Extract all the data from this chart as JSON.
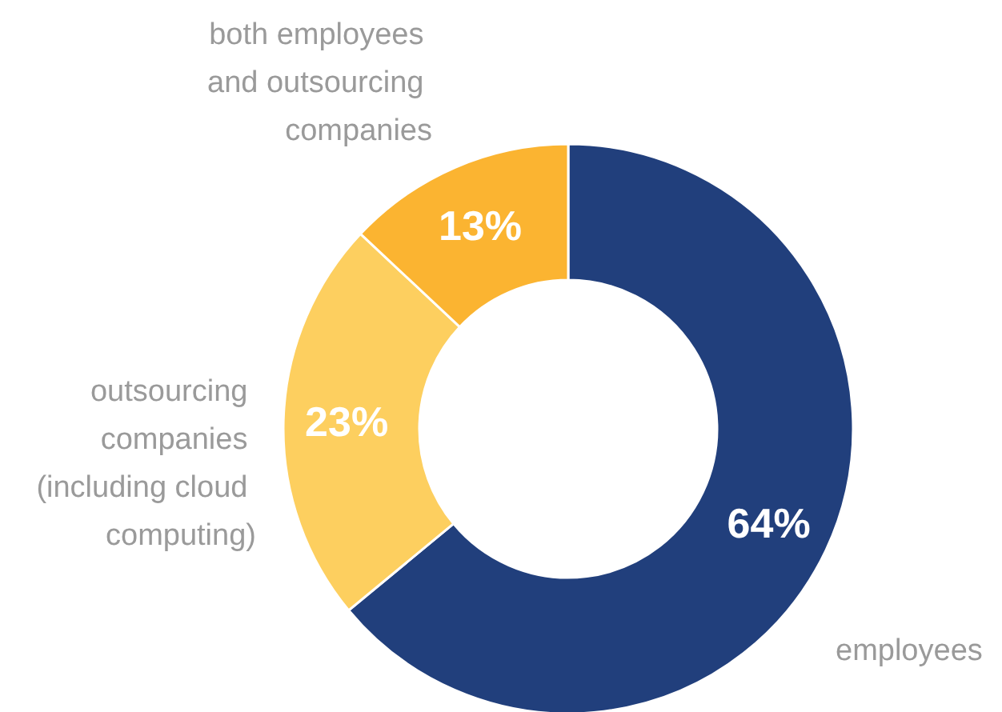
{
  "chart_data": {
    "type": "donut",
    "categories": [
      "employees",
      "outsourcing companies (including cloud computing)",
      "both employees and outsourcing companies"
    ],
    "values": [
      64,
      23,
      13
    ],
    "colors": [
      "#213f7c",
      "#fdcf5f",
      "#fbb431"
    ],
    "value_labels": [
      "64%",
      "23%",
      "13%"
    ]
  }
}
